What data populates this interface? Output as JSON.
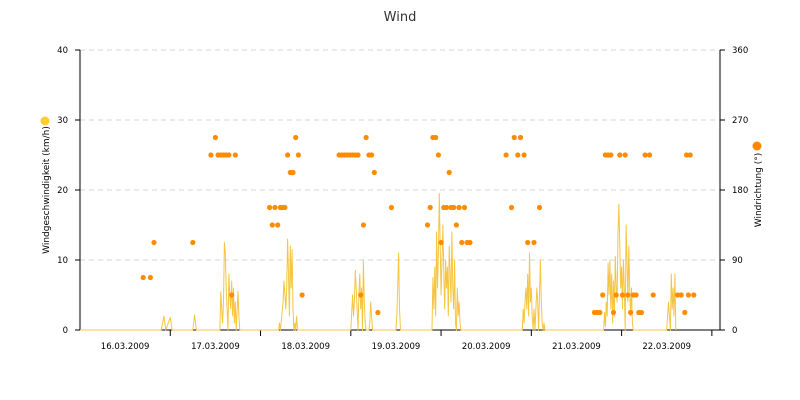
{
  "chart_data": {
    "type": "line",
    "title": "Wind",
    "y_left": {
      "label": "Windgeschwindigkeit (km/h)",
      "ylim": [
        0,
        40
      ],
      "ticks": [
        "0",
        "10",
        "20",
        "30",
        "40"
      ],
      "color": "#ffcc33"
    },
    "y_right": {
      "label": "Windrichtung (°)",
      "ylim": [
        0,
        360
      ],
      "ticks": [
        "0",
        "90",
        "180",
        "270",
        "360"
      ],
      "color": "#ff8800"
    },
    "x": {
      "ticks": [
        "16.03.2009",
        "17.03.2009",
        "18.03.2009",
        "19.03.2009",
        "20.03.2009",
        "21.03.2009",
        "22.03.2009"
      ],
      "range_days": [
        16,
        23.09
      ]
    },
    "grid": true,
    "colors": {
      "speed": "#f5c542",
      "direction": "#ff8c00"
    },
    "series": [
      {
        "type": "line",
        "axis": "left",
        "values": [
          [
            16.0,
            0
          ],
          [
            16.9,
            0
          ],
          [
            16.93,
            2
          ],
          [
            16.95,
            0
          ],
          [
            17.0,
            1.8
          ],
          [
            17.02,
            0
          ],
          [
            17.05,
            0
          ],
          [
            17.25,
            0
          ],
          [
            17.27,
            2.1
          ],
          [
            17.29,
            0
          ],
          [
            17.55,
            0
          ],
          [
            17.56,
            5.5
          ],
          [
            17.57,
            3
          ],
          [
            17.58,
            1
          ],
          [
            17.59,
            4
          ],
          [
            17.6,
            12.5
          ],
          [
            17.61,
            11
          ],
          [
            17.62,
            6
          ],
          [
            17.63,
            3
          ],
          [
            17.64,
            0
          ],
          [
            17.65,
            8
          ],
          [
            17.66,
            5
          ],
          [
            17.67,
            3
          ],
          [
            17.68,
            7
          ],
          [
            17.69,
            2
          ],
          [
            17.7,
            6
          ],
          [
            17.71,
            1
          ],
          [
            17.72,
            4
          ],
          [
            17.73,
            0
          ],
          [
            17.75,
            5.5
          ],
          [
            17.76,
            2
          ],
          [
            17.77,
            0
          ],
          [
            17.8,
            0
          ],
          [
            18.2,
            0
          ],
          [
            18.21,
            1
          ],
          [
            18.22,
            0
          ],
          [
            18.25,
            4
          ],
          [
            18.26,
            7
          ],
          [
            18.27,
            5
          ],
          [
            18.28,
            3
          ],
          [
            18.29,
            6
          ],
          [
            18.3,
            13
          ],
          [
            18.31,
            8
          ],
          [
            18.32,
            2
          ],
          [
            18.33,
            12
          ],
          [
            18.34,
            6
          ],
          [
            18.35,
            11.5
          ],
          [
            18.36,
            3
          ],
          [
            18.37,
            0
          ],
          [
            18.38,
            1
          ],
          [
            18.39,
            0
          ],
          [
            18.4,
            2
          ],
          [
            18.41,
            0
          ],
          [
            18.45,
            0
          ],
          [
            19.0,
            0
          ],
          [
            19.02,
            5
          ],
          [
            19.03,
            2
          ],
          [
            19.04,
            4
          ],
          [
            19.05,
            8.5
          ],
          [
            19.06,
            6
          ],
          [
            19.07,
            3
          ],
          [
            19.08,
            0
          ],
          [
            19.09,
            5
          ],
          [
            19.1,
            8
          ],
          [
            19.11,
            3
          ],
          [
            19.12,
            6
          ],
          [
            19.13,
            0
          ],
          [
            19.14,
            10
          ],
          [
            19.15,
            4
          ],
          [
            19.16,
            1
          ],
          [
            19.17,
            0
          ],
          [
            19.2,
            0
          ],
          [
            19.21,
            1
          ],
          [
            19.22,
            4
          ],
          [
            19.23,
            2
          ],
          [
            19.24,
            0
          ],
          [
            19.25,
            0
          ],
          [
            19.5,
            0
          ],
          [
            19.51,
            2
          ],
          [
            19.52,
            6
          ],
          [
            19.53,
            11
          ],
          [
            19.54,
            3
          ],
          [
            19.55,
            0
          ],
          [
            19.9,
            0
          ],
          [
            19.91,
            7.5
          ],
          [
            19.92,
            3
          ],
          [
            19.93,
            9
          ],
          [
            19.94,
            2
          ],
          [
            19.95,
            14
          ],
          [
            19.96,
            6
          ],
          [
            19.97,
            11
          ],
          [
            19.98,
            19.5
          ],
          [
            19.99,
            12
          ],
          [
            20.0,
            5
          ],
          [
            20.01,
            10
          ],
          [
            20.02,
            15
          ],
          [
            20.03,
            8
          ],
          [
            20.04,
            3
          ],
          [
            20.05,
            10
          ],
          [
            20.06,
            6
          ],
          [
            20.07,
            9
          ],
          [
            20.08,
            2
          ],
          [
            20.09,
            12
          ],
          [
            20.1,
            8
          ],
          [
            20.11,
            4
          ],
          [
            20.12,
            14
          ],
          [
            20.13,
            6
          ],
          [
            20.14,
            3
          ],
          [
            20.15,
            10
          ],
          [
            20.16,
            1
          ],
          [
            20.17,
            0
          ],
          [
            20.18,
            6
          ],
          [
            20.19,
            2
          ],
          [
            20.2,
            4
          ],
          [
            20.21,
            1
          ],
          [
            20.22,
            0
          ],
          [
            20.25,
            0
          ],
          [
            20.9,
            0
          ],
          [
            20.91,
            3
          ],
          [
            20.92,
            1
          ],
          [
            20.93,
            4
          ],
          [
            20.94,
            6
          ],
          [
            20.95,
            3
          ],
          [
            20.96,
            8
          ],
          [
            20.97,
            2
          ],
          [
            20.98,
            11
          ],
          [
            20.99,
            4
          ],
          [
            21.0,
            6
          ],
          [
            21.01,
            2
          ],
          [
            21.02,
            0
          ],
          [
            21.03,
            3
          ],
          [
            21.04,
            0
          ],
          [
            21.06,
            6
          ],
          [
            21.07,
            4
          ],
          [
            21.08,
            0
          ],
          [
            21.1,
            10
          ],
          [
            21.11,
            4
          ],
          [
            21.12,
            1
          ],
          [
            21.13,
            0
          ],
          [
            21.14,
            1
          ],
          [
            21.15,
            0
          ],
          [
            21.2,
            0
          ],
          [
            21.8,
            0
          ],
          [
            21.81,
            2.5
          ],
          [
            21.82,
            0.5
          ],
          [
            21.83,
            4
          ],
          [
            21.84,
            2
          ],
          [
            21.85,
            9.5
          ],
          [
            21.86,
            5
          ],
          [
            21.87,
            10
          ],
          [
            21.88,
            3
          ],
          [
            21.89,
            8
          ],
          [
            21.9,
            1
          ],
          [
            21.91,
            7
          ],
          [
            21.92,
            2
          ],
          [
            21.93,
            10.5
          ],
          [
            21.94,
            6
          ],
          [
            21.95,
            4
          ],
          [
            21.96,
            14
          ],
          [
            21.97,
            18
          ],
          [
            21.98,
            12
          ],
          [
            21.99,
            6
          ],
          [
            22.0,
            9
          ],
          [
            22.01,
            3
          ],
          [
            22.02,
            10
          ],
          [
            22.03,
            6
          ],
          [
            22.04,
            0
          ],
          [
            22.05,
            15
          ],
          [
            22.06,
            10
          ],
          [
            22.07,
            4
          ],
          [
            22.08,
            12
          ],
          [
            22.09,
            6
          ],
          [
            22.1,
            2
          ],
          [
            22.11,
            6
          ],
          [
            22.12,
            1
          ],
          [
            22.13,
            0
          ],
          [
            22.15,
            0
          ],
          [
            22.5,
            0
          ],
          [
            22.51,
            2
          ],
          [
            22.52,
            4
          ],
          [
            22.53,
            2
          ],
          [
            22.54,
            0
          ],
          [
            22.55,
            8
          ],
          [
            22.56,
            3
          ],
          [
            22.57,
            6
          ],
          [
            22.58,
            2
          ],
          [
            22.59,
            8
          ],
          [
            22.6,
            0
          ]
        ]
      },
      {
        "type": "scatter",
        "axis": "right",
        "values": [
          [
            16.7,
            67.5
          ],
          [
            16.78,
            67.5
          ],
          [
            16.82,
            112.5
          ],
          [
            17.25,
            112.5
          ],
          [
            17.45,
            225
          ],
          [
            17.5,
            247.5
          ],
          [
            17.53,
            225
          ],
          [
            17.56,
            225
          ],
          [
            17.59,
            225
          ],
          [
            17.62,
            225
          ],
          [
            17.65,
            225
          ],
          [
            17.68,
            45
          ],
          [
            17.72,
            225
          ],
          [
            18.1,
            157.5
          ],
          [
            18.13,
            135
          ],
          [
            18.16,
            157.5
          ],
          [
            18.19,
            135
          ],
          [
            18.22,
            157.5
          ],
          [
            18.24,
            157.5
          ],
          [
            18.27,
            157.5
          ],
          [
            18.3,
            225
          ],
          [
            18.33,
            202.5
          ],
          [
            18.36,
            202.5
          ],
          [
            18.39,
            247.5
          ],
          [
            18.42,
            225
          ],
          [
            18.46,
            45
          ],
          [
            18.87,
            225
          ],
          [
            18.9,
            225
          ],
          [
            18.93,
            225
          ],
          [
            18.96,
            225
          ],
          [
            18.99,
            225
          ],
          [
            19.02,
            225
          ],
          [
            19.05,
            225
          ],
          [
            19.08,
            225
          ],
          [
            19.11,
            45
          ],
          [
            19.14,
            135
          ],
          [
            19.17,
            247.5
          ],
          [
            19.2,
            225
          ],
          [
            19.23,
            225
          ],
          [
            19.26,
            202.5
          ],
          [
            19.3,
            22.5
          ],
          [
            19.45,
            157.5
          ],
          [
            19.85,
            135
          ],
          [
            19.88,
            157.5
          ],
          [
            19.91,
            247.5
          ],
          [
            19.94,
            247.5
          ],
          [
            19.97,
            225
          ],
          [
            20.0,
            112.5
          ],
          [
            20.03,
            157.5
          ],
          [
            20.06,
            157.5
          ],
          [
            20.09,
            202.5
          ],
          [
            20.11,
            157.5
          ],
          [
            20.14,
            157.5
          ],
          [
            20.17,
            135
          ],
          [
            20.2,
            157.5
          ],
          [
            20.23,
            112.5
          ],
          [
            20.26,
            157.5
          ],
          [
            20.29,
            112.5
          ],
          [
            20.32,
            112.5
          ],
          [
            20.72,
            225
          ],
          [
            20.78,
            157.5
          ],
          [
            20.81,
            247.5
          ],
          [
            20.85,
            225
          ],
          [
            20.88,
            247.5
          ],
          [
            20.92,
            225
          ],
          [
            20.96,
            112.5
          ],
          [
            21.03,
            112.5
          ],
          [
            21.09,
            157.5
          ],
          [
            21.7,
            22.5
          ],
          [
            21.73,
            22.5
          ],
          [
            21.76,
            22.5
          ],
          [
            21.79,
            45
          ],
          [
            21.82,
            225
          ],
          [
            21.85,
            225
          ],
          [
            21.88,
            225
          ],
          [
            21.91,
            22.5
          ],
          [
            21.94,
            45
          ],
          [
            21.98,
            225
          ],
          [
            22.01,
            45
          ],
          [
            22.04,
            225
          ],
          [
            22.07,
            45
          ],
          [
            22.1,
            22.5
          ],
          [
            22.13,
            45
          ],
          [
            22.16,
            45
          ],
          [
            22.19,
            22.5
          ],
          [
            22.22,
            22.5
          ],
          [
            22.26,
            225
          ],
          [
            22.31,
            225
          ],
          [
            22.35,
            45
          ],
          [
            22.62,
            45
          ],
          [
            22.66,
            45
          ],
          [
            22.7,
            22.5
          ],
          [
            22.72,
            225
          ],
          [
            22.74,
            45
          ],
          [
            22.76,
            225
          ],
          [
            22.8,
            45
          ]
        ]
      }
    ]
  }
}
